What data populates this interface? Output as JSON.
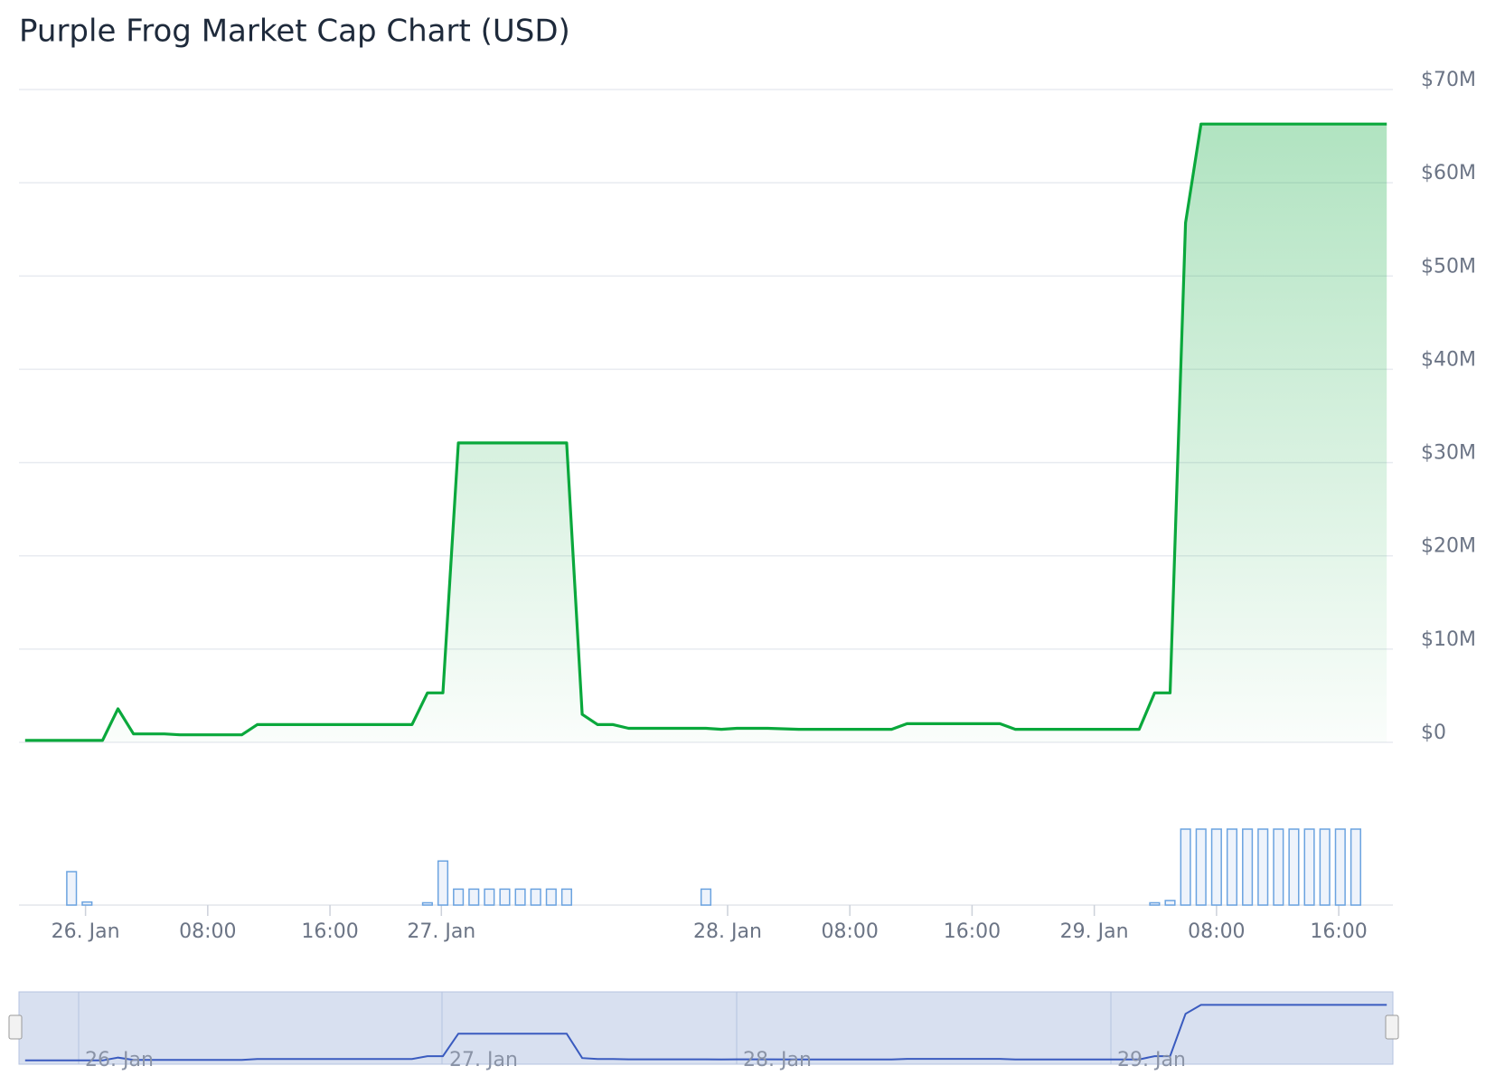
{
  "chart_data": {
    "type": "area",
    "title": "Purple Frog Market Cap Chart (USD)",
    "color": "#0aa83c",
    "x": [
      0,
      5,
      6,
      7,
      9,
      10,
      14,
      15,
      19,
      22,
      25,
      26,
      27,
      28,
      35,
      36,
      37,
      38,
      39,
      42,
      44,
      45,
      46,
      48,
      50,
      56,
      57,
      63,
      64,
      72,
      73,
      74,
      75,
      76,
      88
    ],
    "series": [
      {
        "name": "Market Cap",
        "color": "#0aa83c",
        "values": [
          200000,
          200000,
          3600000,
          900000,
          900000,
          800000,
          800000,
          1900000,
          1900000,
          1900000,
          1900000,
          5300000,
          5300000,
          32100000,
          32100000,
          3000000,
          1900000,
          1900000,
          1500000,
          1500000,
          1500000,
          1400000,
          1500000,
          1500000,
          1400000,
          1400000,
          2000000,
          2000000,
          1400000,
          1400000,
          5300000,
          5300000,
          55700000,
          66300000,
          66300000
        ]
      }
    ],
    "xlim": [
      -0.4,
      88.4
    ],
    "ylim": [
      0,
      70000000
    ],
    "yticks": [
      {
        "value": 0,
        "label": "$0"
      },
      {
        "value": 10000000,
        "label": "$10M"
      },
      {
        "value": 20000000,
        "label": "$20M"
      },
      {
        "value": 30000000,
        "label": "$30M"
      },
      {
        "value": 40000000,
        "label": "$40M"
      },
      {
        "value": 50000000,
        "label": "$50M"
      },
      {
        "value": 60000000,
        "label": "$60M"
      },
      {
        "value": 70000000,
        "label": "$70M"
      }
    ],
    "xticks": [
      {
        "value": 3.9,
        "label": "26. Jan"
      },
      {
        "value": 11.8,
        "label": "08:00"
      },
      {
        "value": 19.7,
        "label": "16:00"
      },
      {
        "value": 26.9,
        "label": "27. Jan"
      },
      {
        "value": 45.4,
        "label": "28. Jan"
      },
      {
        "value": 53.3,
        "label": "08:00"
      },
      {
        "value": 61.2,
        "label": "16:00"
      },
      {
        "value": 69.1,
        "label": "29. Jan"
      },
      {
        "value": 77.0,
        "label": "08:00"
      },
      {
        "value": 84.9,
        "label": "16:00"
      }
    ],
    "grid": true,
    "volume": {
      "color": "#6ba3e0",
      "x": [
        3,
        4,
        26,
        27,
        28,
        29,
        30,
        31,
        32,
        33,
        34,
        35,
        44,
        73,
        74,
        75,
        76,
        77,
        78,
        79,
        80,
        81,
        82,
        83,
        84,
        85,
        86
      ],
      "values": [
        44,
        4,
        3,
        58,
        21,
        21,
        21,
        21,
        21,
        21,
        21,
        21,
        21,
        3,
        6,
        100,
        100,
        100,
        100,
        100,
        100,
        100,
        100,
        100,
        100,
        100,
        100
      ],
      "ylim": [
        0,
        100
      ]
    },
    "navigator": {
      "labels": [
        "26. Jan",
        "27. Jan",
        "28. Jan",
        "29. Jan"
      ]
    }
  }
}
